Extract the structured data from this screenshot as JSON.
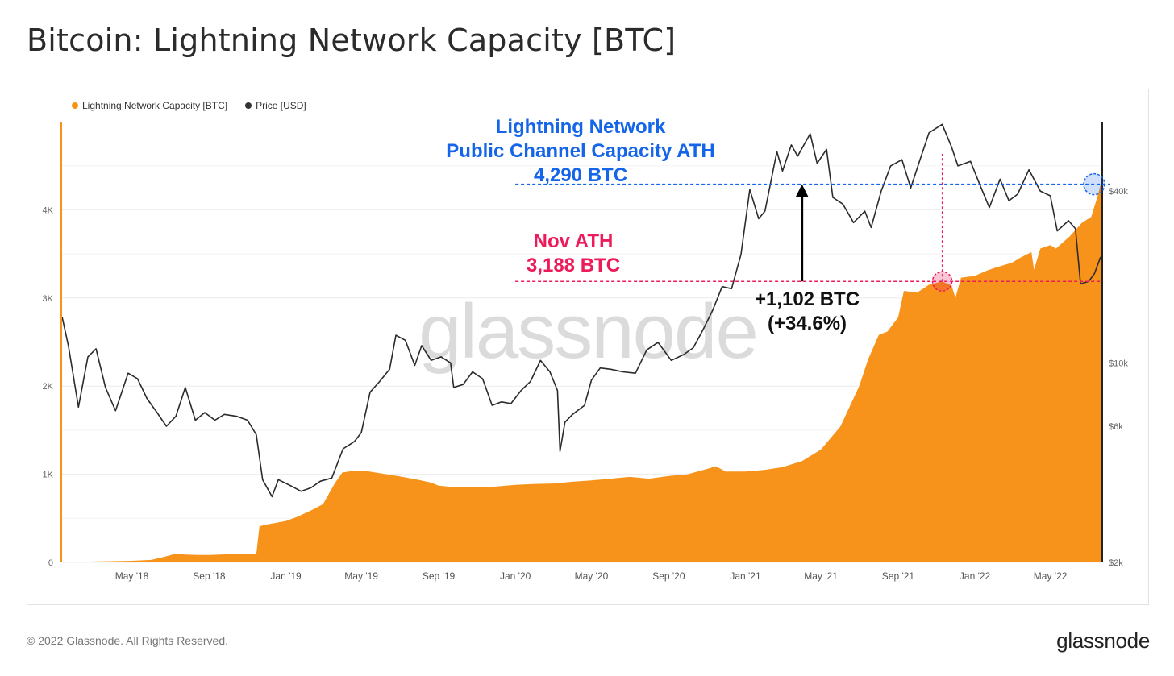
{
  "title": "Bitcoin: Lightning Network Capacity [BTC]",
  "footer": {
    "copyright": "© 2022 Glassnode. All Rights Reserved.",
    "logo": "glassnode"
  },
  "watermark": "glassnode",
  "legend": [
    {
      "label": "Lightning Network Capacity [BTC]",
      "color": "#F7931A"
    },
    {
      "label": "Price [USD]",
      "color": "#333333"
    }
  ],
  "annotations": {
    "ath_lines": [
      "Lightning Network",
      "Public Channel Capacity ATH",
      "4,290 BTC"
    ],
    "ath_color": "#1565E8",
    "nov_lines": [
      "Nov ATH",
      "3,188 BTC"
    ],
    "nov_color": "#EC1C5B",
    "diff_lines": [
      "+1,102 BTC",
      "(+34.6%)"
    ]
  },
  "chart_data": {
    "type": "area",
    "x_tick_labels": [
      "May '18",
      "Sep '18",
      "Jan '19",
      "May '19",
      "Sep '19",
      "Jan '20",
      "May '20",
      "Sep '20",
      "Jan '21",
      "May '21",
      "Sep '21",
      "Jan '22",
      "May '22"
    ],
    "y_left": {
      "ticks": [
        0,
        1000,
        2000,
        3000,
        4000
      ],
      "tick_labels": [
        "0",
        "1K",
        "2K",
        "3K",
        "4K"
      ],
      "range": [
        0,
        5000
      ]
    },
    "y_right": {
      "scale": "log",
      "ticks": [
        2000,
        6000,
        10000,
        40000
      ],
      "tick_labels": [
        "$2k",
        "$6k",
        "$10k",
        "$40k"
      ],
      "range": [
        2000,
        70000
      ]
    },
    "x_range": [
      "2018-01-10",
      "2022-07-20"
    ],
    "series": [
      {
        "name": "Lightning Network Capacity [BTC]",
        "axis": "left",
        "color": "#F7931A",
        "points": [
          [
            "2018-01-10",
            0
          ],
          [
            "2018-02-10",
            2
          ],
          [
            "2018-03-01",
            10
          ],
          [
            "2018-04-01",
            14
          ],
          [
            "2018-05-01",
            18
          ],
          [
            "2018-06-01",
            28
          ],
          [
            "2018-06-20",
            60
          ],
          [
            "2018-07-10",
            100
          ],
          [
            "2018-07-25",
            90
          ],
          [
            "2018-08-15",
            85
          ],
          [
            "2018-09-01",
            85
          ],
          [
            "2018-10-01",
            92
          ],
          [
            "2018-11-15",
            96
          ],
          [
            "2018-11-20",
            410
          ],
          [
            "2018-12-01",
            430
          ],
          [
            "2019-01-01",
            470
          ],
          [
            "2019-01-20",
            520
          ],
          [
            "2019-02-10",
            590
          ],
          [
            "2019-03-01",
            660
          ],
          [
            "2019-03-20",
            900
          ],
          [
            "2019-04-01",
            1020
          ],
          [
            "2019-04-20",
            1040
          ],
          [
            "2019-05-10",
            1035
          ],
          [
            "2019-06-01",
            1010
          ],
          [
            "2019-07-01",
            975
          ],
          [
            "2019-08-01",
            935
          ],
          [
            "2019-08-20",
            905
          ],
          [
            "2019-09-01",
            870
          ],
          [
            "2019-10-01",
            850
          ],
          [
            "2019-11-01",
            855
          ],
          [
            "2019-12-01",
            860
          ],
          [
            "2020-01-01",
            880
          ],
          [
            "2020-02-01",
            890
          ],
          [
            "2020-03-01",
            895
          ],
          [
            "2020-04-01",
            915
          ],
          [
            "2020-05-01",
            930
          ],
          [
            "2020-06-01",
            950
          ],
          [
            "2020-07-01",
            970
          ],
          [
            "2020-08-01",
            950
          ],
          [
            "2020-09-01",
            980
          ],
          [
            "2020-10-01",
            1000
          ],
          [
            "2020-11-01",
            1060
          ],
          [
            "2020-11-15",
            1090
          ],
          [
            "2020-12-01",
            1030
          ],
          [
            "2021-01-01",
            1030
          ],
          [
            "2021-02-01",
            1050
          ],
          [
            "2021-03-01",
            1080
          ],
          [
            "2021-04-01",
            1150
          ],
          [
            "2021-05-01",
            1280
          ],
          [
            "2021-06-01",
            1540
          ],
          [
            "2021-07-01",
            2000
          ],
          [
            "2021-07-15",
            2300
          ],
          [
            "2021-08-01",
            2580
          ],
          [
            "2021-08-15",
            2620
          ],
          [
            "2021-09-01",
            2780
          ],
          [
            "2021-09-10",
            3080
          ],
          [
            "2021-10-01",
            3060
          ],
          [
            "2021-10-20",
            3150
          ],
          [
            "2021-11-10",
            3188
          ],
          [
            "2021-11-25",
            3140
          ],
          [
            "2021-12-01",
            3000
          ],
          [
            "2021-12-10",
            3230
          ],
          [
            "2022-01-01",
            3250
          ],
          [
            "2022-01-20",
            3310
          ],
          [
            "2022-02-01",
            3340
          ],
          [
            "2022-03-01",
            3400
          ],
          [
            "2022-03-15",
            3460
          ],
          [
            "2022-04-01",
            3520
          ],
          [
            "2022-04-05",
            3320
          ],
          [
            "2022-04-15",
            3560
          ],
          [
            "2022-05-01",
            3600
          ],
          [
            "2022-05-10",
            3560
          ],
          [
            "2022-06-01",
            3700
          ],
          [
            "2022-06-20",
            3850
          ],
          [
            "2022-07-05",
            3920
          ],
          [
            "2022-07-15",
            4150
          ],
          [
            "2022-07-20",
            4290
          ]
        ]
      },
      {
        "name": "Price [USD]",
        "axis": "right",
        "color": "#2b2b2b",
        "points": [
          [
            "2018-01-10",
            14500
          ],
          [
            "2018-01-20",
            11500
          ],
          [
            "2018-02-05",
            7000
          ],
          [
            "2018-02-20",
            10500
          ],
          [
            "2018-03-05",
            11200
          ],
          [
            "2018-03-20",
            8200
          ],
          [
            "2018-04-05",
            6800
          ],
          [
            "2018-04-25",
            9200
          ],
          [
            "2018-05-10",
            8800
          ],
          [
            "2018-05-25",
            7500
          ],
          [
            "2018-06-10",
            6700
          ],
          [
            "2018-06-25",
            6000
          ],
          [
            "2018-07-10",
            6500
          ],
          [
            "2018-07-25",
            8200
          ],
          [
            "2018-08-10",
            6300
          ],
          [
            "2018-08-25",
            6700
          ],
          [
            "2018-09-10",
            6300
          ],
          [
            "2018-09-25",
            6600
          ],
          [
            "2018-10-15",
            6500
          ],
          [
            "2018-11-01",
            6300
          ],
          [
            "2018-11-15",
            5600
          ],
          [
            "2018-11-25",
            3900
          ],
          [
            "2018-12-10",
            3400
          ],
          [
            "2018-12-20",
            3900
          ],
          [
            "2019-01-10",
            3700
          ],
          [
            "2019-01-25",
            3550
          ],
          [
            "2019-02-10",
            3650
          ],
          [
            "2019-02-25",
            3850
          ],
          [
            "2019-03-15",
            3950
          ],
          [
            "2019-04-02",
            5000
          ],
          [
            "2019-04-20",
            5300
          ],
          [
            "2019-05-01",
            5700
          ],
          [
            "2019-05-15",
            7900
          ],
          [
            "2019-05-30",
            8600
          ],
          [
            "2019-06-15",
            9500
          ],
          [
            "2019-06-25",
            12500
          ],
          [
            "2019-07-10",
            12000
          ],
          [
            "2019-07-25",
            9800
          ],
          [
            "2019-08-05",
            11500
          ],
          [
            "2019-08-20",
            10200
          ],
          [
            "2019-09-05",
            10500
          ],
          [
            "2019-09-20",
            10000
          ],
          [
            "2019-09-25",
            8200
          ],
          [
            "2019-10-10",
            8400
          ],
          [
            "2019-10-25",
            9300
          ],
          [
            "2019-11-10",
            8800
          ],
          [
            "2019-11-25",
            7100
          ],
          [
            "2019-12-10",
            7300
          ],
          [
            "2019-12-25",
            7200
          ],
          [
            "2020-01-10",
            8000
          ],
          [
            "2020-01-25",
            8600
          ],
          [
            "2020-02-10",
            10200
          ],
          [
            "2020-02-25",
            9300
          ],
          [
            "2020-03-08",
            8000
          ],
          [
            "2020-03-12",
            4900
          ],
          [
            "2020-03-20",
            6200
          ],
          [
            "2020-04-01",
            6600
          ],
          [
            "2020-04-20",
            7100
          ],
          [
            "2020-05-01",
            8700
          ],
          [
            "2020-05-15",
            9600
          ],
          [
            "2020-06-01",
            9500
          ],
          [
            "2020-06-20",
            9300
          ],
          [
            "2020-07-10",
            9200
          ],
          [
            "2020-07-28",
            11100
          ],
          [
            "2020-08-15",
            11800
          ],
          [
            "2020-09-05",
            10200
          ],
          [
            "2020-09-25",
            10700
          ],
          [
            "2020-10-10",
            11300
          ],
          [
            "2020-10-25",
            13000
          ],
          [
            "2020-11-10",
            15300
          ],
          [
            "2020-11-25",
            18500
          ],
          [
            "2020-12-10",
            18200
          ],
          [
            "2020-12-25",
            24000
          ],
          [
            "2021-01-08",
            40500
          ],
          [
            "2021-01-22",
            32000
          ],
          [
            "2021-02-01",
            34000
          ],
          [
            "2021-02-20",
            55000
          ],
          [
            "2021-03-01",
            47000
          ],
          [
            "2021-03-15",
            58000
          ],
          [
            "2021-03-25",
            53000
          ],
          [
            "2021-04-14",
            63500
          ],
          [
            "2021-04-25",
            50000
          ],
          [
            "2021-05-10",
            56000
          ],
          [
            "2021-05-20",
            38000
          ],
          [
            "2021-06-05",
            36000
          ],
          [
            "2021-06-22",
            31000
          ],
          [
            "2021-07-10",
            34000
          ],
          [
            "2021-07-20",
            29800
          ],
          [
            "2021-08-05",
            40000
          ],
          [
            "2021-08-20",
            49000
          ],
          [
            "2021-09-07",
            51500
          ],
          [
            "2021-09-21",
            41000
          ],
          [
            "2021-10-05",
            51000
          ],
          [
            "2021-10-20",
            64000
          ],
          [
            "2021-11-10",
            68500
          ],
          [
            "2021-11-25",
            57000
          ],
          [
            "2021-12-05",
            49000
          ],
          [
            "2021-12-25",
            50800
          ],
          [
            "2022-01-10",
            41500
          ],
          [
            "2022-01-24",
            35000
          ],
          [
            "2022-02-10",
            44000
          ],
          [
            "2022-02-24",
            37000
          ],
          [
            "2022-03-10",
            39000
          ],
          [
            "2022-03-28",
            47500
          ],
          [
            "2022-04-15",
            40000
          ],
          [
            "2022-05-01",
            38500
          ],
          [
            "2022-05-12",
            29000
          ],
          [
            "2022-05-30",
            31500
          ],
          [
            "2022-06-10",
            29500
          ],
          [
            "2022-06-18",
            18900
          ],
          [
            "2022-07-01",
            19300
          ],
          [
            "2022-07-10",
            20500
          ],
          [
            "2022-07-20",
            23500
          ]
        ]
      }
    ],
    "reference_lines": [
      {
        "label": "ATH",
        "value": 4290,
        "axis": "left",
        "color": "#1565E8",
        "from": "2020-01-01"
      },
      {
        "label": "Nov ATH",
        "value": 3188,
        "axis": "left",
        "color": "#EC1C5B",
        "from": "2020-01-01",
        "marker_date": "2021-11-10"
      }
    ]
  }
}
